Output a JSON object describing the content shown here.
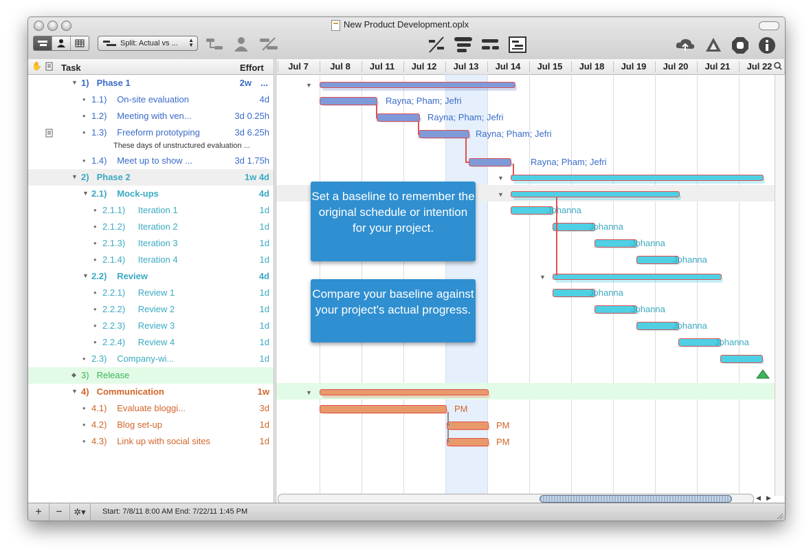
{
  "window": {
    "title": "New Product Development.oplx"
  },
  "toolbar": {
    "view_dropdown": "Split: Actual vs ..."
  },
  "outline": {
    "col_task": "Task",
    "col_effort": "Effort",
    "rows": [
      {
        "disclosure": "▼",
        "num": "1)",
        "name": "Phase 1",
        "effort": "2w",
        "effort2": "...",
        "bold": true,
        "color": "#3a6bc8",
        "indent": 0
      },
      {
        "disclosure": "•",
        "num": "1.1)",
        "name": "On-site evaluation",
        "effort": "4d",
        "bold": false,
        "color": "#3a6bc8",
        "indent": 1
      },
      {
        "disclosure": "•",
        "num": "1.2)",
        "name": "Meeting with ven...",
        "effort": "3d 0.25h",
        "bold": false,
        "color": "#3a6bc8",
        "indent": 1
      },
      {
        "disclosure": "•",
        "num": "1.3)",
        "name": "Freeform prototyping",
        "effort": "3d 6.25h",
        "bold": false,
        "color": "#3a6bc8",
        "indent": 1,
        "note": "These days of unstructured evaluation ..."
      },
      {
        "disclosure": "•",
        "num": "1.4)",
        "name": "Meet up to show ...",
        "effort": "3d 1.75h",
        "bold": false,
        "color": "#3a6bc8",
        "indent": 1
      },
      {
        "disclosure": "▼",
        "num": "2)",
        "name": "Phase 2",
        "effort": "1w 4d",
        "bold": true,
        "color": "#3aaac2",
        "indent": 0
      },
      {
        "disclosure": "▼",
        "num": "2.1)",
        "name": "Mock-ups",
        "effort": "4d",
        "bold": true,
        "color": "#3aaac2",
        "indent": 1
      },
      {
        "disclosure": "•",
        "num": "2.1.1)",
        "name": "Iteration 1",
        "effort": "1d",
        "bold": false,
        "color": "#3aaac2",
        "indent": 2
      },
      {
        "disclosure": "•",
        "num": "2.1.2)",
        "name": "Iteration 2",
        "effort": "1d",
        "bold": false,
        "color": "#3aaac2",
        "indent": 2
      },
      {
        "disclosure": "•",
        "num": "2.1.3)",
        "name": "Iteration 3",
        "effort": "1d",
        "bold": false,
        "color": "#3aaac2",
        "indent": 2
      },
      {
        "disclosure": "•",
        "num": "2.1.4)",
        "name": "Iteration 4",
        "effort": "1d",
        "bold": false,
        "color": "#3aaac2",
        "indent": 2
      },
      {
        "disclosure": "▼",
        "num": "2.2)",
        "name": "Review",
        "effort": "4d",
        "bold": true,
        "color": "#3aaac2",
        "indent": 1
      },
      {
        "disclosure": "•",
        "num": "2.2.1)",
        "name": "Review 1",
        "effort": "1d",
        "bold": false,
        "color": "#3aaac2",
        "indent": 2
      },
      {
        "disclosure": "•",
        "num": "2.2.2)",
        "name": "Review 2",
        "effort": "1d",
        "bold": false,
        "color": "#3aaac2",
        "indent": 2
      },
      {
        "disclosure": "•",
        "num": "2.2.3)",
        "name": "Review 3",
        "effort": "1d",
        "bold": false,
        "color": "#3aaac2",
        "indent": 2
      },
      {
        "disclosure": "•",
        "num": "2.2.4)",
        "name": "Review 4",
        "effort": "1d",
        "bold": false,
        "color": "#3aaac2",
        "indent": 2
      },
      {
        "disclosure": "•",
        "num": "2.3)",
        "name": "Company-wi...",
        "effort": "1d",
        "bold": false,
        "color": "#3aaac2",
        "indent": 1
      },
      {
        "disclosure": "◆",
        "num": "3)",
        "name": "Release",
        "effort": "",
        "bold": false,
        "color": "#3fb35a",
        "indent": 0
      },
      {
        "disclosure": "▼",
        "num": "4)",
        "name": "Communication",
        "effort": "1w",
        "bold": true,
        "color": "#d0652a",
        "indent": 0
      },
      {
        "disclosure": "•",
        "num": "4.1)",
        "name": "Evaluate bloggi...",
        "effort": "3d",
        "bold": false,
        "color": "#d0652a",
        "indent": 1
      },
      {
        "disclosure": "•",
        "num": "4.2)",
        "name": "Blog set-up",
        "effort": "1d",
        "bold": false,
        "color": "#d0652a",
        "indent": 1
      },
      {
        "disclosure": "•",
        "num": "4.3)",
        "name": "Link up with social sites",
        "effort": "1d",
        "bold": false,
        "color": "#d0652a",
        "indent": 1
      }
    ]
  },
  "gantt": {
    "dates": [
      "Jul 7",
      "Jul 8",
      "Jul 11",
      "Jul 12",
      "Jul 13",
      "Jul 14",
      "Jul 15",
      "Jul 18",
      "Jul 19",
      "Jul 20",
      "Jul 21",
      "Jul 22"
    ],
    "assignments": {
      "phase1": "Rayna; Pham; Jefri",
      "phase2": "Johanna",
      "comm": "PM"
    },
    "callout_baseline": "Set a baseline to remember the original schedule or intention for your project.",
    "callout_compare": "Compare your baseline against your project's actual progress.",
    "colors": {
      "phase1": "#7f9ad9",
      "phase2": "#4fd0e4",
      "release": "#3fb35a",
      "comm": "#e89a6a",
      "baseline": "#e05050"
    }
  },
  "status": {
    "text": "Start: 7/8/11 8:00 AM End: 7/22/11 1:45 PM"
  }
}
